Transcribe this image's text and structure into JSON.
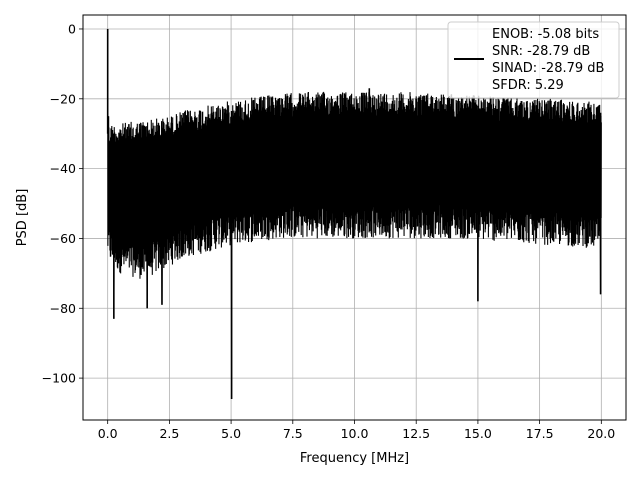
{
  "chart_data": {
    "type": "line",
    "title": "",
    "xlabel": "Frequency [MHz]",
    "ylabel": "PSD [dB]",
    "xlim": [
      -1.0,
      21.0
    ],
    "ylim": [
      -112,
      4
    ],
    "xticks": [
      0.0,
      2.5,
      5.0,
      7.5,
      10.0,
      12.5,
      15.0,
      17.5,
      20.0
    ],
    "xtick_labels": [
      "0.0",
      "2.5",
      "5.0",
      "7.5",
      "10.0",
      "12.5",
      "15.0",
      "17.5",
      "20.0"
    ],
    "yticks": [
      0,
      -20,
      -40,
      -60,
      -80,
      -100
    ],
    "ytick_labels": [
      "0",
      "−20",
      "−40",
      "−60",
      "−80",
      "−100"
    ],
    "grid": true,
    "legend_position": "top-right",
    "colors": {
      "line": "#000000",
      "grid": "#b0b0b0",
      "axes": "#000000"
    },
    "series": [
      {
        "name": "ENOB: -5.08 bits\nSNR: -28.79 dB\nSINAD: -28.79 dB\nSFDR: 5.29",
        "legend_lines": [
          "ENOB: -5.08 bits",
          "SNR: -28.79 dB",
          "SINAD: -28.79 dB",
          "SFDR: 5.29"
        ],
        "x_range": [
          0.0,
          20.0
        ],
        "envelope": {
          "x": [
            0.0,
            0.15,
            0.5,
            1.0,
            1.5,
            2.0,
            2.5,
            3.0,
            4.0,
            5.0,
            6.0,
            7.0,
            8.0,
            9.0,
            10.0,
            11.0,
            12.0,
            13.0,
            14.0,
            15.0,
            16.0,
            17.0,
            18.0,
            19.0,
            20.0
          ],
          "upper": [
            -27,
            -27,
            -27,
            -26.5,
            -26,
            -25.5,
            -25,
            -23.5,
            -22,
            -20.5,
            -19.5,
            -18.5,
            -18,
            -18,
            -18,
            -18,
            -18,
            -18.2,
            -18.5,
            -19,
            -19.5,
            -20,
            -20,
            -20.5,
            -21
          ],
          "lower": [
            -65,
            -68,
            -70,
            -71,
            -72,
            -70,
            -68,
            -66,
            -64,
            -62,
            -61,
            -60,
            -60,
            -60,
            -60,
            -60,
            -60,
            -60,
            -60,
            -60.5,
            -61,
            -61.5,
            -62,
            -62.5,
            -63
          ]
        },
        "spikes": [
          {
            "x": 0.0,
            "y": 0
          },
          {
            "x": 0.03,
            "y": -25
          },
          {
            "x": 0.25,
            "y": -83
          },
          {
            "x": 1.6,
            "y": -80
          },
          {
            "x": 2.2,
            "y": -79
          },
          {
            "x": 5.02,
            "y": -106
          },
          {
            "x": 10.6,
            "y": -17
          },
          {
            "x": 15.0,
            "y": -78
          },
          {
            "x": 19.97,
            "y": -76
          }
        ]
      }
    ]
  }
}
